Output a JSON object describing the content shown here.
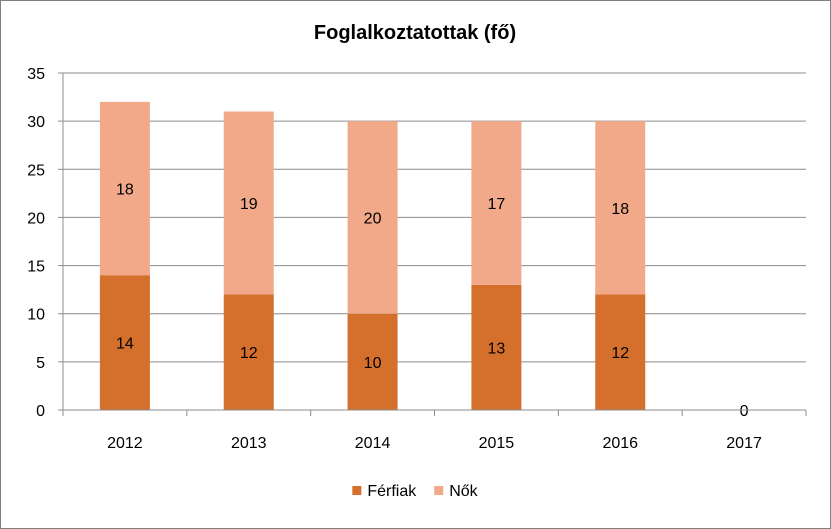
{
  "chart_data": {
    "type": "bar",
    "stacked": true,
    "title": "Foglalkoztatottak (fő)",
    "xlabel": "",
    "ylabel": "",
    "ylim": [
      0,
      35
    ],
    "y_ticks": [
      "0",
      "5",
      "10",
      "15",
      "20",
      "25",
      "30",
      "35"
    ],
    "grid": true,
    "legend_position": "bottom",
    "categories": [
      "2012",
      "2013",
      "2014",
      "2015",
      "2016",
      "2017"
    ],
    "series": [
      {
        "name": "Férfiak",
        "color": "#d4702b",
        "values": [
          14,
          12,
          10,
          13,
          12,
          0
        ],
        "labels": [
          "14",
          "12",
          "10",
          "13",
          "12",
          "0"
        ]
      },
      {
        "name": "Nők",
        "color": "#f1a98a",
        "values": [
          18,
          19,
          20,
          17,
          18,
          0
        ],
        "labels": [
          "18",
          "19",
          "20",
          "17",
          "18",
          ""
        ]
      }
    ]
  }
}
